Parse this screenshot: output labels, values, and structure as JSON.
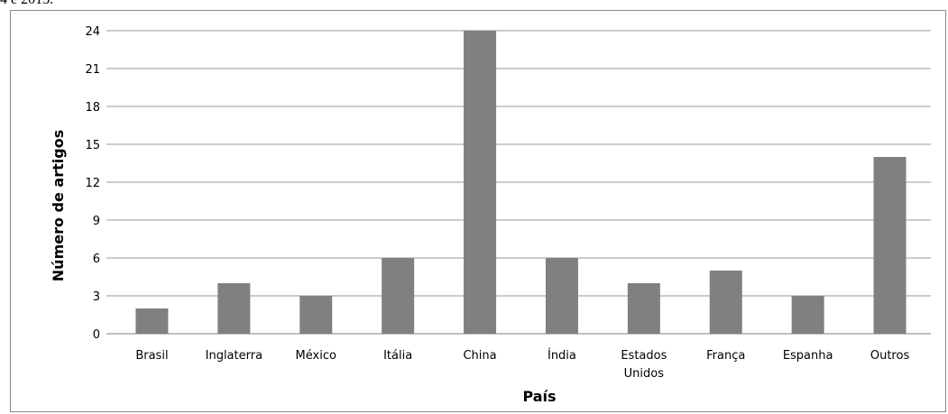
{
  "caption": "4 e 2015.",
  "chart_data": {
    "type": "bar",
    "title": "",
    "xlabel": "País",
    "ylabel": "Número de artigos",
    "ylim": [
      0,
      24
    ],
    "yticks": [
      0,
      3,
      6,
      9,
      12,
      15,
      18,
      21,
      24
    ],
    "grid": true,
    "legend": "none",
    "bar_color": "#808080",
    "categories": [
      "Brasil",
      "Inglaterra",
      "México",
      "Itália",
      "China",
      "Índia",
      "Estados Unidos",
      "França",
      "Espanha",
      "Outros"
    ],
    "category_lines": [
      [
        "Brasil"
      ],
      [
        "Inglaterra"
      ],
      [
        "México"
      ],
      [
        "Itália"
      ],
      [
        "China"
      ],
      [
        "Índia"
      ],
      [
        "Estados",
        "Unidos"
      ],
      [
        "França"
      ],
      [
        "Espanha"
      ],
      [
        "Outros"
      ]
    ],
    "values": [
      2,
      4,
      3,
      6,
      24,
      6,
      4,
      5,
      3,
      14
    ]
  }
}
